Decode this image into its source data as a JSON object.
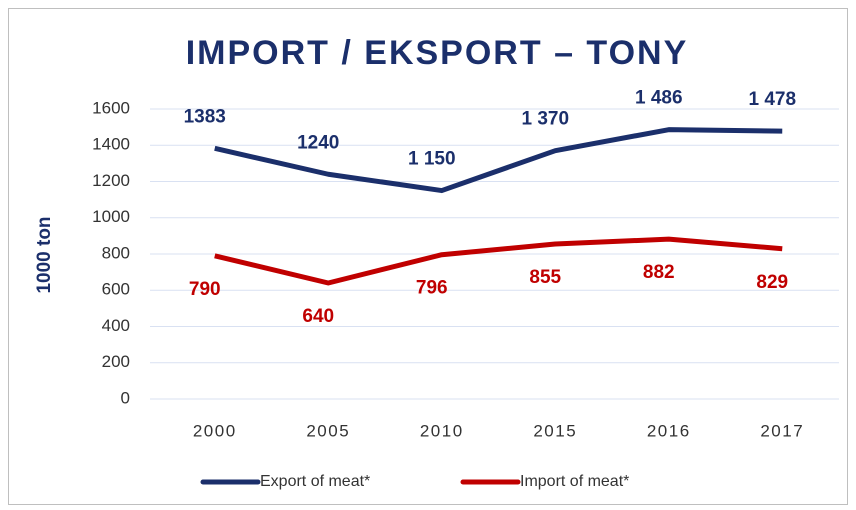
{
  "chart_data": {
    "type": "line",
    "title": "IMPORT / EKSPORT – TONY",
    "y_label": "1000 ton",
    "categories": [
      "2000",
      "2005",
      "2010",
      "2015",
      "2016",
      "2017"
    ],
    "series": [
      {
        "name": "Export of meat*",
        "color": "#1b2f6b",
        "values": [
          1383,
          1240,
          1150,
          1370,
          1486,
          1478
        ],
        "value_labels": [
          "1383",
          "1240",
          "1 150",
          "1 370",
          "1 486",
          "1 478"
        ]
      },
      {
        "name": "Import of meat*",
        "color": "#c00000",
        "values": [
          790,
          640,
          796,
          855,
          882,
          829
        ]
      }
    ],
    "ylim": [
      0,
      1600
    ],
    "yticks": [
      0,
      200,
      400,
      600,
      800,
      1000,
      1200,
      1400,
      1600
    ],
    "grid": true
  }
}
